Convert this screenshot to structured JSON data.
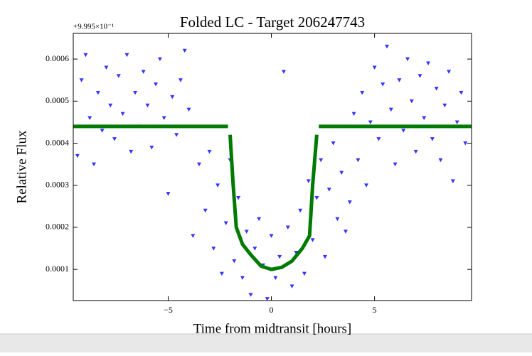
{
  "chart_data": {
    "type": "scatter",
    "title": "Folded LC - Target 206247743",
    "offset_text": "+9.995×10⁻¹",
    "xlabel": "Time from midtransit [hours]",
    "ylabel": "Relative Flux",
    "xlim": [
      -9.6,
      9.7
    ],
    "ylim": [
      2.6e-05,
      0.000661
    ],
    "xticks": [
      {
        "value": -5,
        "label": "−5"
      },
      0,
      5
    ],
    "yticks": [
      0.0001,
      0.0002,
      0.0003,
      0.0004,
      0.0005,
      0.0006
    ],
    "series": [
      {
        "type": "scatter",
        "color": "#3535ff",
        "x": [
          -9.4,
          -9.2,
          -9.0,
          -8.8,
          -8.6,
          -8.4,
          -8.2,
          -8.0,
          -7.8,
          -7.6,
          -7.4,
          -7.2,
          -7.0,
          -6.8,
          -6.6,
          -6.4,
          -6.2,
          -6.0,
          -5.8,
          -5.6,
          -5.4,
          -5.2,
          -5.0,
          -4.8,
          -4.6,
          -4.4,
          -4.2,
          -4.0,
          -3.8,
          -3.5,
          -3.2,
          -3.0,
          -2.8,
          -2.6,
          -2.4,
          -2.2,
          -2.0,
          -1.8,
          -1.6,
          -1.4,
          -1.2,
          -1.0,
          -0.8,
          -0.6,
          -0.4,
          -0.2,
          0.0,
          0.2,
          0.4,
          0.6,
          0.8,
          1.0,
          1.2,
          1.4,
          1.6,
          1.8,
          2.0,
          2.2,
          2.4,
          2.6,
          2.8,
          3.0,
          3.2,
          3.4,
          3.6,
          3.8,
          4.0,
          4.2,
          4.4,
          4.6,
          4.8,
          5.0,
          5.2,
          5.4,
          5.6,
          5.8,
          6.0,
          6.2,
          6.4,
          6.6,
          6.8,
          7.0,
          7.2,
          7.4,
          7.6,
          7.8,
          8.0,
          8.2,
          8.4,
          8.6,
          8.8,
          9.0,
          9.2,
          9.4
        ],
        "values": [
          0.00037,
          0.00055,
          0.00061,
          0.00046,
          0.00035,
          0.00052,
          0.00043,
          0.00058,
          0.00049,
          0.00041,
          0.00056,
          0.00047,
          0.00061,
          0.00038,
          0.00052,
          0.00044,
          0.00057,
          0.00049,
          0.00039,
          0.00054,
          0.0006,
          0.00046,
          0.00028,
          0.00051,
          0.00042,
          0.00055,
          0.00062,
          0.00048,
          0.00018,
          0.00035,
          0.00024,
          0.00038,
          0.00015,
          0.0003,
          9e-05,
          0.00021,
          0.00036,
          0.00012,
          0.00027,
          8e-05,
          0.00019,
          4e-05,
          0.00015,
          0.00022,
          0.00011,
          3e-05,
          0.00018,
          8e-05,
          0.00013,
          0.00057,
          0.0002,
          6e-05,
          0.00014,
          0.00024,
          9e-05,
          0.00031,
          0.00017,
          0.00027,
          0.00036,
          0.00013,
          0.00029,
          0.0004,
          0.00022,
          0.00033,
          0.00019,
          0.00026,
          0.00047,
          0.00036,
          0.00052,
          0.0003,
          0.00045,
          0.00058,
          0.00041,
          0.00054,
          0.00063,
          0.00048,
          0.00035,
          0.00055,
          0.00043,
          0.0006,
          0.0005,
          0.00038,
          0.00056,
          0.00046,
          0.00059,
          0.00041,
          0.00053,
          0.00036,
          0.00049,
          0.00057,
          0.00031,
          0.00045,
          0.00052,
          0.0004
        ]
      },
      {
        "type": "line",
        "color": "#007a00",
        "x": [
          -9.6,
          -2.1,
          -2.05,
          -2.0,
          -1.85,
          -1.7,
          -1.4,
          -1.0,
          -0.5,
          0,
          0.5,
          1.0,
          1.5,
          1.85,
          2.0,
          2.2,
          2.25,
          2.3,
          9.7
        ],
        "values": [
          0.00044,
          0.00044,
          null,
          0.00042,
          0.0003,
          0.0002,
          0.00016,
          0.000135,
          0.000108,
          0.0001,
          0.000105,
          0.00012,
          0.00015,
          0.00018,
          0.0003,
          0.00042,
          null,
          0.00044,
          0.00044
        ]
      }
    ]
  }
}
